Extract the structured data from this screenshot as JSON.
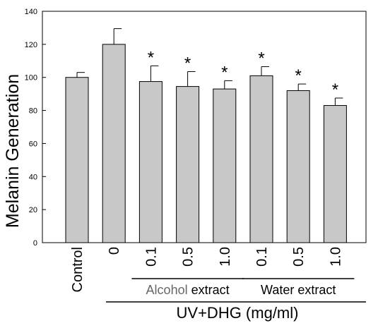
{
  "chart_data": {
    "type": "bar",
    "title": "",
    "ylabel": "Melanin Generation",
    "xlabel": "UV+DHG (mg/ml)",
    "ylim": [
      0,
      140
    ],
    "yticks": [
      0,
      20,
      40,
      60,
      80,
      100,
      120,
      140
    ],
    "categories": [
      "Control",
      "0",
      "0.1",
      "0.5",
      "1.0",
      "0.1",
      "0.5",
      "1.0"
    ],
    "values": [
      100,
      120,
      97.5,
      94.5,
      93,
      101,
      92,
      83
    ],
    "errors": [
      3,
      9.5,
      9.5,
      9,
      5,
      5.5,
      4,
      4.5
    ],
    "significance": [
      "",
      "",
      "*",
      "*",
      "*",
      "*",
      "*",
      "*"
    ],
    "groups": [
      {
        "label_parts": [
          {
            "text": "Alcohol",
            "color": "#666666"
          },
          {
            "text": " extract",
            "color": "#000000"
          }
        ],
        "from": 2,
        "to": 4
      },
      {
        "label_parts": [
          {
            "text": "Water extract",
            "color": "#000000"
          }
        ],
        "from": 5,
        "to": 7
      }
    ],
    "colors": {
      "bar": "#c8c8c8",
      "stroke": "#000000"
    },
    "grid": false
  }
}
